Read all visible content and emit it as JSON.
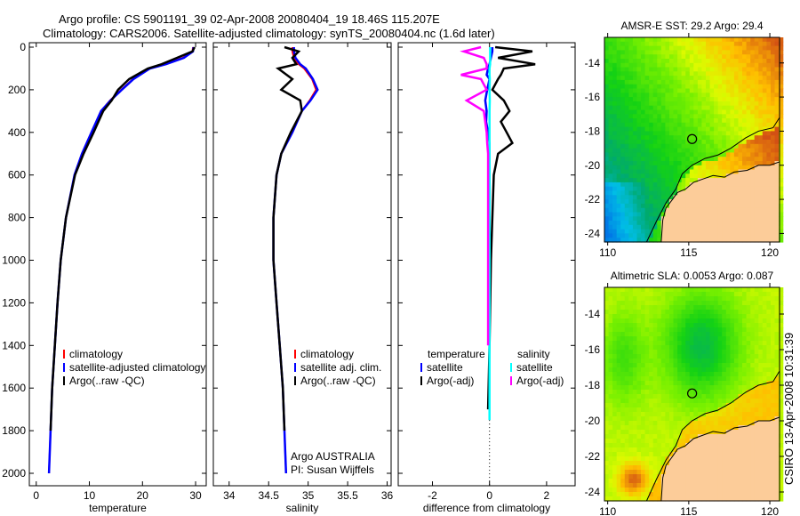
{
  "title": {
    "line1": "Argo profile: CS 5901191_39 02-Apr-2008 20080404_19 18.46S 115.207E",
    "line2": "Climatology: CARS2006. Satellite-adjusted climatology: synTS_20080404.nc (1.6d later)"
  },
  "footer": {
    "credit": "CSIRO 13-Apr-2008 10:31:39"
  },
  "colors": {
    "climatology": "#ff0000",
    "satellite": "#0000ff",
    "argo": "#000000",
    "sal_sat": "#00ffff",
    "sal_argo": "#ff00ff",
    "land": "#fccc99"
  },
  "chart_data": [
    {
      "type": "line",
      "xlabel": "temperature",
      "ylabel": "",
      "xlim": [
        -1.3,
        32
      ],
      "ylim": [
        2000,
        0
      ],
      "xticks": [
        "0",
        "10",
        "20",
        "30"
      ],
      "xtick_values": [
        0,
        10,
        20,
        30
      ],
      "yticks": [
        "0",
        "200",
        "400",
        "600",
        "800",
        "1000",
        "1200",
        "1400",
        "1600",
        "1800",
        "2000"
      ],
      "ytick_values": [
        0,
        200,
        400,
        600,
        800,
        1000,
        1200,
        1400,
        1600,
        1800,
        2000
      ],
      "legend": [
        "climatology",
        "satellite-adjusted climatology",
        "Argo(..raw -QC)"
      ],
      "depth": [
        0,
        20,
        50,
        80,
        100,
        150,
        200,
        250,
        300,
        400,
        500,
        600,
        800,
        1000,
        1200,
        1400,
        1600,
        1800,
        2000
      ],
      "series": [
        {
          "name": "climatology",
          "values": [
            29.5,
            29.4,
            27.6,
            24.2,
            21.3,
            18.2,
            16.0,
            13.9,
            12.2,
            10.4,
            8.6,
            7.2,
            5.6,
            4.6,
            4.0,
            3.5,
            3.0,
            2.7,
            2.4
          ]
        },
        {
          "name": "satellite-adjusted climatology",
          "values": [
            29.6,
            29.5,
            27.8,
            24.4,
            21.4,
            18.3,
            16.1,
            14.0,
            12.2,
            10.4,
            8.6,
            7.2,
            5.6,
            4.6,
            4.0,
            3.5,
            3.0,
            2.7,
            2.4
          ]
        },
        {
          "name": "Argo(..raw -QC)",
          "values": [
            29.8,
            29.4,
            26.5,
            23.6,
            21.0,
            17.5,
            15.4,
            14.2,
            12.6,
            10.8,
            8.9,
            7.3,
            5.6,
            4.6,
            4.0,
            3.5,
            3.0,
            2.7,
            null
          ]
        }
      ]
    },
    {
      "type": "line",
      "xlabel": "salinity",
      "xlim": [
        33.8,
        36.05
      ],
      "ylim": [
        2000,
        0
      ],
      "xticks": [
        "34",
        "34.5",
        "35",
        "35.5",
        "36"
      ],
      "xtick_values": [
        34,
        34.5,
        35,
        35.5,
        36
      ],
      "legend": [
        "climatology",
        "satellite adj. clim.",
        "Argo(..raw -QC)"
      ],
      "annotation": [
        "Argo AUSTRALIA",
        "PI: Susan Wijffels"
      ],
      "depth": [
        0,
        20,
        50,
        80,
        100,
        150,
        200,
        250,
        300,
        400,
        500,
        600,
        800,
        1000,
        1200,
        1400,
        1600,
        1800,
        2000
      ],
      "series": [
        {
          "name": "climatology",
          "values": [
            34.8,
            34.8,
            34.82,
            34.88,
            34.95,
            35.05,
            35.1,
            35.02,
            34.92,
            34.8,
            34.66,
            34.6,
            34.56,
            34.56,
            34.6,
            34.64,
            34.68,
            34.7,
            34.72
          ]
        },
        {
          "name": "satellite adj. clim.",
          "values": [
            34.82,
            34.82,
            34.84,
            34.9,
            34.97,
            35.06,
            35.12,
            35.03,
            34.92,
            34.8,
            34.66,
            34.6,
            34.56,
            34.56,
            34.6,
            34.64,
            34.68,
            34.7,
            34.72
          ]
        },
        {
          "name": "Argo(..raw -QC)",
          "values": [
            34.7,
            34.88,
            34.8,
            34.85,
            34.62,
            34.8,
            34.66,
            34.9,
            34.92,
            34.78,
            34.66,
            34.6,
            34.56,
            34.56,
            34.6,
            34.64,
            34.68,
            34.7,
            null
          ]
        }
      ]
    },
    {
      "type": "line",
      "xlabel": "difference from climatology",
      "xlim": [
        -3.2,
        3.0
      ],
      "ylim": [
        2000,
        0
      ],
      "xticks": [
        "-2",
        "0",
        "2"
      ],
      "xtick_values": [
        -2,
        0,
        2
      ],
      "legend_titles": [
        "temperature",
        "salinity"
      ],
      "legend": [
        "satellite",
        "Argo(-adj)",
        "satellite",
        "Argo(-adj)"
      ],
      "depth": [
        0,
        20,
        50,
        80,
        100,
        130,
        150,
        200,
        250,
        300,
        350,
        400,
        450,
        500,
        600,
        800,
        1000,
        1400,
        1700,
        1750
      ],
      "series": [
        {
          "name": "temperature satellite",
          "values": [
            0.1,
            0.1,
            0.05,
            0.0,
            -0.05,
            -0.1,
            0.0,
            -0.08,
            -0.15,
            -0.1,
            -0.12,
            -0.05,
            0,
            0,
            0,
            0,
            0,
            0,
            null,
            null
          ]
        },
        {
          "name": "temperature Argo(-adj)",
          "values": [
            0.2,
            1.5,
            0.3,
            1.6,
            0.5,
            0.4,
            0.3,
            0.1,
            0.5,
            0.7,
            0.4,
            0.6,
            0.8,
            0.3,
            0.15,
            0.1,
            0.05,
            0.0,
            -0.05,
            null
          ]
        },
        {
          "name": "salinity satellite",
          "values": [
            0.02,
            0.02,
            0.02,
            0.02,
            0.0,
            0.0,
            0.01,
            0.0,
            0.01,
            0.0,
            0.0,
            0.0,
            0.0,
            0.0,
            0.0,
            0.0,
            0.0,
            0.0,
            0.0,
            0.0
          ]
        },
        {
          "name": "salinity Argo(-adj)",
          "values": [
            -0.3,
            -0.9,
            -0.2,
            -0.1,
            -0.1,
            -1.0,
            -0.3,
            -0.1,
            -0.8,
            -0.2,
            -0.15,
            -0.1,
            -0.08,
            -0.05,
            -0.05,
            -0.05,
            -0.05,
            -0.05,
            null,
            null
          ]
        }
      ]
    },
    {
      "type": "heatmap",
      "title": "AMSR-E SST: 29.2 Argo: 29.4",
      "field": "sst",
      "xlim": [
        109.8,
        120.6
      ],
      "ylim": [
        -24.5,
        -12.5
      ],
      "xticks": [
        "110",
        "115",
        "120"
      ],
      "xtick_values": [
        110,
        115,
        120
      ],
      "yticks": [
        "-14",
        "-16",
        "-18",
        "-20",
        "-22",
        "-24"
      ],
      "ytick_values": [
        -14,
        -16,
        -18,
        -20,
        -22,
        -24
      ],
      "marker": {
        "lon": 115.207,
        "lat": -18.46
      }
    },
    {
      "type": "heatmap",
      "title": "Altimetric SLA: 0.0053 Argo: 0.087",
      "field": "sla",
      "xlim": [
        109.8,
        120.6
      ],
      "ylim": [
        -24.5,
        -12.5
      ],
      "xticks": [
        "110",
        "115",
        "120"
      ],
      "xtick_values": [
        110,
        115,
        120
      ],
      "yticks": [
        "-14",
        "-16",
        "-18",
        "-20",
        "-22",
        "-24"
      ],
      "ytick_values": [
        -14,
        -16,
        -18,
        -20,
        -22,
        -24
      ],
      "marker": {
        "lon": 115.207,
        "lat": -18.46
      }
    }
  ]
}
